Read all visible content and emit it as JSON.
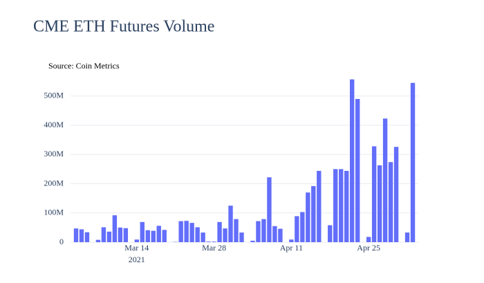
{
  "chart_data": {
    "type": "bar",
    "title": "CME ETH Futures Volume",
    "annotation": "Source: Coin Metrics",
    "color": "#636efa",
    "grid": true,
    "x": [
      "2021-03-03",
      "2021-03-04",
      "2021-03-05",
      "2021-03-06",
      "2021-03-07",
      "2021-03-08",
      "2021-03-09",
      "2021-03-10",
      "2021-03-11",
      "2021-03-12",
      "2021-03-13",
      "2021-03-14",
      "2021-03-15",
      "2021-03-16",
      "2021-03-17",
      "2021-03-18",
      "2021-03-19",
      "2021-03-20",
      "2021-03-21",
      "2021-03-22",
      "2021-03-23",
      "2021-03-24",
      "2021-03-25",
      "2021-03-26",
      "2021-03-27",
      "2021-03-28",
      "2021-03-29",
      "2021-03-30",
      "2021-03-31",
      "2021-04-01",
      "2021-04-02",
      "2021-04-03",
      "2021-04-04",
      "2021-04-05",
      "2021-04-06",
      "2021-04-07",
      "2021-04-08",
      "2021-04-09",
      "2021-04-10",
      "2021-04-11",
      "2021-04-12",
      "2021-04-13",
      "2021-04-14",
      "2021-04-15",
      "2021-04-16",
      "2021-04-17",
      "2021-04-18",
      "2021-04-19",
      "2021-04-20",
      "2021-04-21",
      "2021-04-22",
      "2021-04-23",
      "2021-04-24",
      "2021-04-25",
      "2021-04-26",
      "2021-04-27",
      "2021-04-28",
      "2021-04-29",
      "2021-04-30",
      "2021-05-01",
      "2021-05-02",
      "2021-05-03"
    ],
    "values": [
      47000000,
      44000000,
      34000000,
      0,
      8000000,
      51000000,
      36000000,
      92000000,
      50000000,
      48000000,
      0,
      9000000,
      69000000,
      41000000,
      39000000,
      56000000,
      42000000,
      0,
      1000000,
      72000000,
      73000000,
      66000000,
      51000000,
      33000000,
      2000000,
      2000000,
      69000000,
      47000000,
      125000000,
      79000000,
      33000000,
      0,
      5000000,
      72000000,
      79000000,
      222000000,
      55000000,
      46000000,
      0,
      9000000,
      89000000,
      103000000,
      170000000,
      192000000,
      244000000,
      0,
      58000000,
      250000000,
      250000000,
      244000000,
      557000000,
      490000000,
      0,
      18000000,
      328000000,
      263000000,
      423000000,
      274000000,
      326000000,
      0,
      33000000,
      545000000
    ],
    "xlim": [
      "2021-03-02",
      "2021-05-04"
    ],
    "xticks": [
      {
        "value": "2021-03-14",
        "label": "Mar 14"
      },
      {
        "value": "2021-03-28",
        "label": "Mar 28"
      },
      {
        "value": "2021-04-11",
        "label": "Apr 11"
      },
      {
        "value": "2021-04-25",
        "label": "Apr 25"
      }
    ],
    "x_year_label": "2021",
    "ylim": [
      0,
      580000000
    ],
    "yticks": [
      {
        "value": 0,
        "label": "0"
      },
      {
        "value": 100000000,
        "label": "100M"
      },
      {
        "value": 200000000,
        "label": "200M"
      },
      {
        "value": 300000000,
        "label": "300M"
      },
      {
        "value": 400000000,
        "label": "400M"
      },
      {
        "value": 500000000,
        "label": "500M"
      }
    ]
  }
}
